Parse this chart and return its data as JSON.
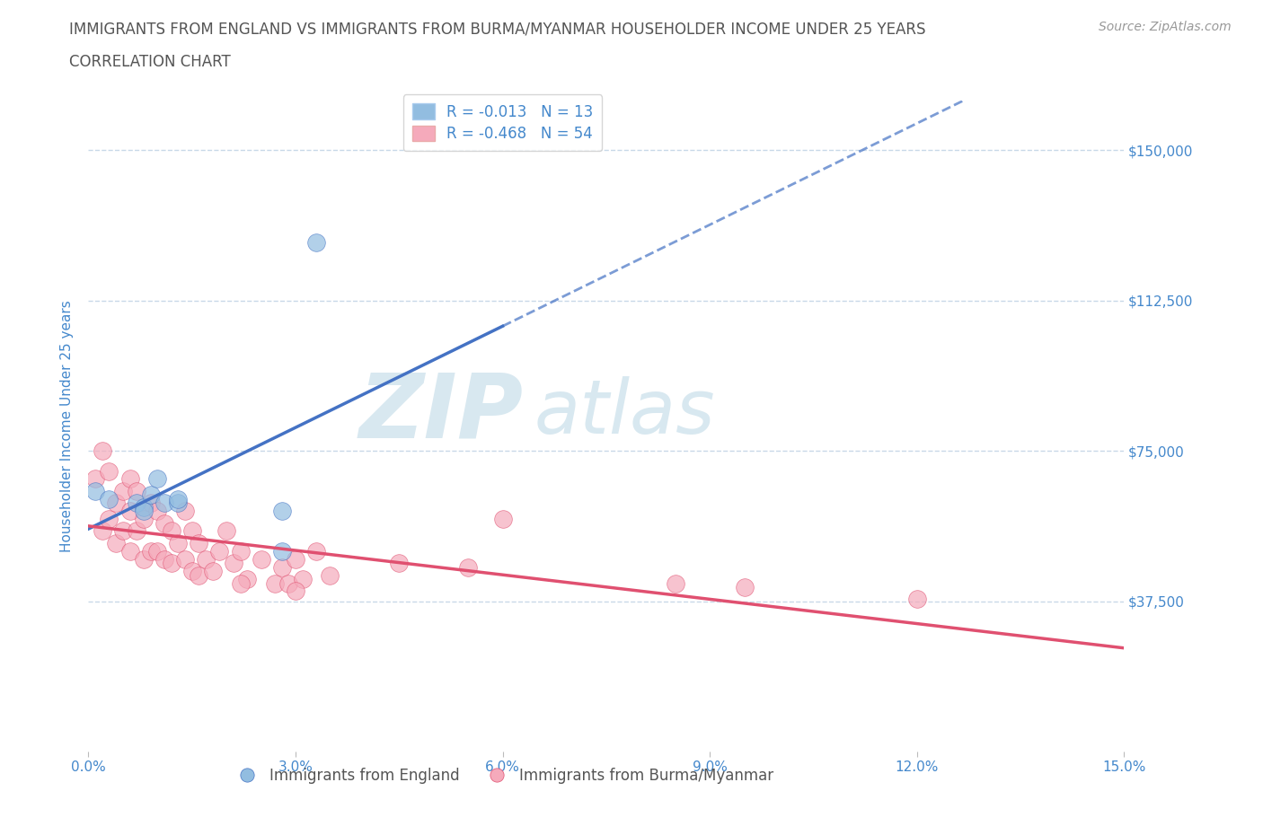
{
  "title_line1": "IMMIGRANTS FROM ENGLAND VS IMMIGRANTS FROM BURMA/MYANMAR HOUSEHOLDER INCOME UNDER 25 YEARS",
  "title_line2": "CORRELATION CHART",
  "source_text": "Source: ZipAtlas.com",
  "ylabel": "Householder Income Under 25 years",
  "xlim": [
    0.0,
    0.15
  ],
  "ylim": [
    0,
    162500
  ],
  "yticks": [
    0,
    37500,
    75000,
    112500,
    150000
  ],
  "ytick_labels": [
    "",
    "$37,500",
    "$75,000",
    "$112,500",
    "$150,000"
  ],
  "xtick_vals": [
    0.0,
    0.03,
    0.06,
    0.09,
    0.12,
    0.15
  ],
  "xtick_labels": [
    "0.0%",
    "3.0%",
    "6.0%",
    "9.0%",
    "12.0%",
    "15.0%"
  ],
  "england_R": -0.013,
  "england_N": 13,
  "burma_R": -0.468,
  "burma_N": 54,
  "england_color": "#92BDE0",
  "burma_color": "#F5AABB",
  "england_line_color": "#4472C4",
  "burma_line_color": "#E05070",
  "grid_color": "#C8D8E8",
  "bg_color": "#FFFFFF",
  "title_color": "#555555",
  "axis_label_color": "#4488CC",
  "source_color": "#999999",
  "legend_label_color": "#4488CC",
  "watermark_color": "#D8E8F0",
  "england_x": [
    0.001,
    0.003,
    0.007,
    0.008,
    0.008,
    0.009,
    0.01,
    0.011,
    0.013,
    0.013,
    0.028,
    0.028,
    0.033
  ],
  "england_y": [
    65000,
    63000,
    62000,
    61000,
    60000,
    64000,
    68000,
    62000,
    62000,
    63000,
    60000,
    50000,
    127000
  ],
  "burma_x": [
    0.001,
    0.002,
    0.002,
    0.003,
    0.003,
    0.004,
    0.004,
    0.005,
    0.005,
    0.006,
    0.006,
    0.006,
    0.007,
    0.007,
    0.008,
    0.008,
    0.009,
    0.009,
    0.01,
    0.01,
    0.011,
    0.011,
    0.012,
    0.012,
    0.013,
    0.014,
    0.014,
    0.015,
    0.015,
    0.016,
    0.016,
    0.017,
    0.018,
    0.019,
    0.02,
    0.021,
    0.022,
    0.023,
    0.025,
    0.027,
    0.028,
    0.029,
    0.03,
    0.031,
    0.033,
    0.035,
    0.045,
    0.055,
    0.06,
    0.085,
    0.095,
    0.12,
    0.03,
    0.022
  ],
  "burma_y": [
    68000,
    75000,
    55000,
    70000,
    58000,
    62000,
    52000,
    65000,
    55000,
    68000,
    60000,
    50000,
    65000,
    55000,
    58000,
    48000,
    62000,
    50000,
    60000,
    50000,
    57000,
    48000,
    55000,
    47000,
    52000,
    60000,
    48000,
    55000,
    45000,
    52000,
    44000,
    48000,
    45000,
    50000,
    55000,
    47000,
    50000,
    43000,
    48000,
    42000,
    46000,
    42000,
    48000,
    43000,
    50000,
    44000,
    47000,
    46000,
    58000,
    42000,
    41000,
    38000,
    40000,
    42000
  ]
}
